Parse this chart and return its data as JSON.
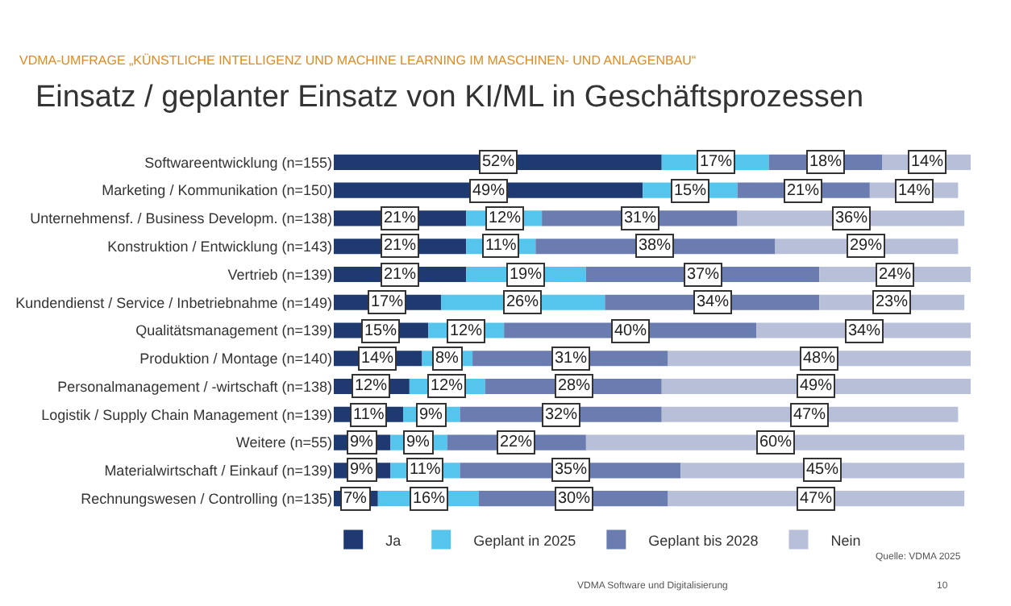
{
  "chart_data": {
    "type": "bar",
    "orientation": "horizontal",
    "stacked": true,
    "title": "Einsatz / geplanter Einsatz von KI/ML in Geschäftsprozessen",
    "subtitle": "VDMA-UMFRAGE „KÜNSTLICHE INTELLIGENZ UND MACHINE LEARNING IM MASCHINEN- UND ANLAGENBAU“",
    "annotations": [
      "Quelle: VDMA 2025",
      "VDMA Software und Digitalisierung",
      "10"
    ],
    "categories": [
      "Softwareentwicklung (n=155)",
      "Marketing / Kommunikation (n=150)",
      "Unternehmensf. / Business Developm. (n=138)",
      "Konstruktion / Entwicklung (n=143)",
      "Vertrieb (n=139)",
      "Kundendienst / Service / Inbetriebnahme (n=149)",
      "Qualitätsmanagement (n=139)",
      "Produktion / Montage (n=140)",
      "Personalmanagement / -wirtschaft (n=138)",
      "Logistik / Supply Chain Management (n=139)",
      "Weitere (n=55)",
      "Materialwirtschaft / Einkauf (n=139)",
      "Rechnungswesen / Controlling (n=135)"
    ],
    "xlim": [
      0,
      101
    ],
    "tick_labels": "y",
    "legend": "bottom left",
    "series": [
      {
        "name": "Ja",
        "color": "#1f3a70",
        "values": [
          52,
          49,
          21,
          21,
          21,
          17,
          15,
          14,
          12,
          11,
          9,
          9,
          7
        ],
        "value_labels": [
          "52%",
          "49%",
          "21%",
          "21%",
          "21%",
          "17%",
          "15%",
          "14%",
          "12%",
          "11%",
          "9%",
          "9%",
          "7%"
        ]
      },
      {
        "name": "Geplant in 2025",
        "color": "#56c5ee",
        "values": [
          17,
          15,
          12,
          11,
          19,
          26,
          12,
          8,
          12,
          9,
          9,
          11,
          16
        ],
        "value_labels": [
          "17%",
          "15%",
          "12%",
          "11%",
          "19%",
          "26%",
          "12%",
          "8%",
          "12%",
          "9%",
          "9%",
          "11%",
          "16%"
        ]
      },
      {
        "name": "Geplant bis 2028",
        "color": "#6b7cb0",
        "values": [
          18,
          21,
          31,
          38,
          37,
          34,
          40,
          31,
          28,
          32,
          22,
          35,
          30
        ],
        "value_labels": [
          "18%",
          "21%",
          "31%",
          "38%",
          "37%",
          "34%",
          "40%",
          "31%",
          "28%",
          "32%",
          "22%",
          "35%",
          "30%"
        ]
      },
      {
        "name": "Nein",
        "color": "#b8bfd8",
        "values": [
          14,
          14,
          36,
          29,
          24,
          23,
          34,
          48,
          49,
          47,
          60,
          45,
          47
        ],
        "value_labels": [
          "14%",
          "14%",
          "36%",
          "29%",
          "24%",
          "23%",
          "34%",
          "48%",
          "49%",
          "47%",
          "60%",
          "45%",
          "47%"
        ]
      }
    ]
  }
}
